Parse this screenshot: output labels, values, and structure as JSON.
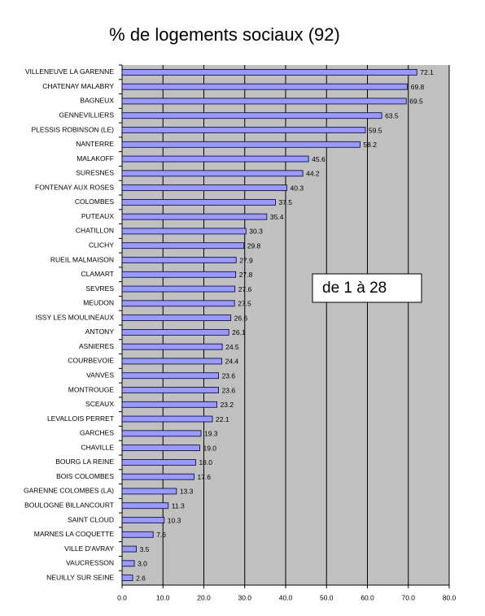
{
  "chart_data": {
    "type": "bar",
    "title": "% de  logements sociaux (92)",
    "annotation": "de 1 à 28",
    "categories": [
      "VILLENEUVE LA GARENNE",
      "CHATENAY MALABRY",
      "BAGNEUX",
      "GENNEVILLIERS",
      "PLESSIS ROBINSON (LE)",
      "NANTERRE",
      "MALAKOFF",
      "SURESNES",
      "FONTENAY AUX ROSES",
      "COLOMBES",
      "PUTEAUX",
      "CHATILLON",
      "CLICHY",
      "RUEIL MALMAISON",
      "CLAMART",
      "SEVRES",
      "MEUDON",
      "ISSY LES MOULINEAUX",
      "ANTONY",
      "ASNIERES",
      "COURBEVOIE",
      "VANVES",
      "MONTROUGE",
      "SCEAUX",
      "LEVALLOIS PERRET",
      "GARCHES",
      "CHAVILLE",
      "BOURG LA REINE",
      "BOIS COLOMBES",
      "GARENNE COLOMBES (LA)",
      "BOULOGNE BILLANCOURT",
      "SAINT CLOUD",
      "MARNES LA COQUETTE",
      "VILLE D'AVRAY",
      "VAUCRESSON",
      "NEUILLY SUR SEINE"
    ],
    "values": [
      72.1,
      69.8,
      69.5,
      63.5,
      59.5,
      58.2,
      45.6,
      44.2,
      40.3,
      37.5,
      35.4,
      30.3,
      29.8,
      27.9,
      27.8,
      27.6,
      27.5,
      26.6,
      26.1,
      24.5,
      24.4,
      23.6,
      23.6,
      23.2,
      22.1,
      19.3,
      19.0,
      18.0,
      17.6,
      13.3,
      11.3,
      10.3,
      7.6,
      3.5,
      3.0,
      2.6
    ],
    "value_labels": [
      "72.1",
      "69.8",
      "69.5",
      "63.5",
      "59.5",
      "58.2",
      "45.6",
      "44.2",
      "40.3",
      "37.5",
      "35.4",
      "30.3",
      "29.8",
      "27.9",
      "27.8",
      "27.6",
      "27.5",
      "26.6",
      "26.1",
      "24.5",
      "24.4",
      "23.6",
      "23.6",
      "23.2",
      "22.1",
      "19.3",
      "19.0",
      "18.0",
      "17.6",
      "13.3",
      "11.3",
      "10.3",
      "7.6",
      "3.5",
      "3.0",
      "2.6"
    ],
    "color": "#9999ff",
    "xlim": [
      0,
      80
    ],
    "xticks": [
      {
        "value": 0,
        "label": "0.0"
      },
      {
        "value": 10,
        "label": "10.0"
      },
      {
        "value": 20,
        "label": "20.0"
      },
      {
        "value": 30,
        "label": "30.0"
      },
      {
        "value": 40,
        "label": "40.0"
      },
      {
        "value": 50,
        "label": "50.0"
      },
      {
        "value": 60,
        "label": "60.0"
      },
      {
        "value": 70,
        "label": "70.0"
      },
      {
        "value": 80,
        "label": "80.0"
      }
    ],
    "grid": true
  }
}
